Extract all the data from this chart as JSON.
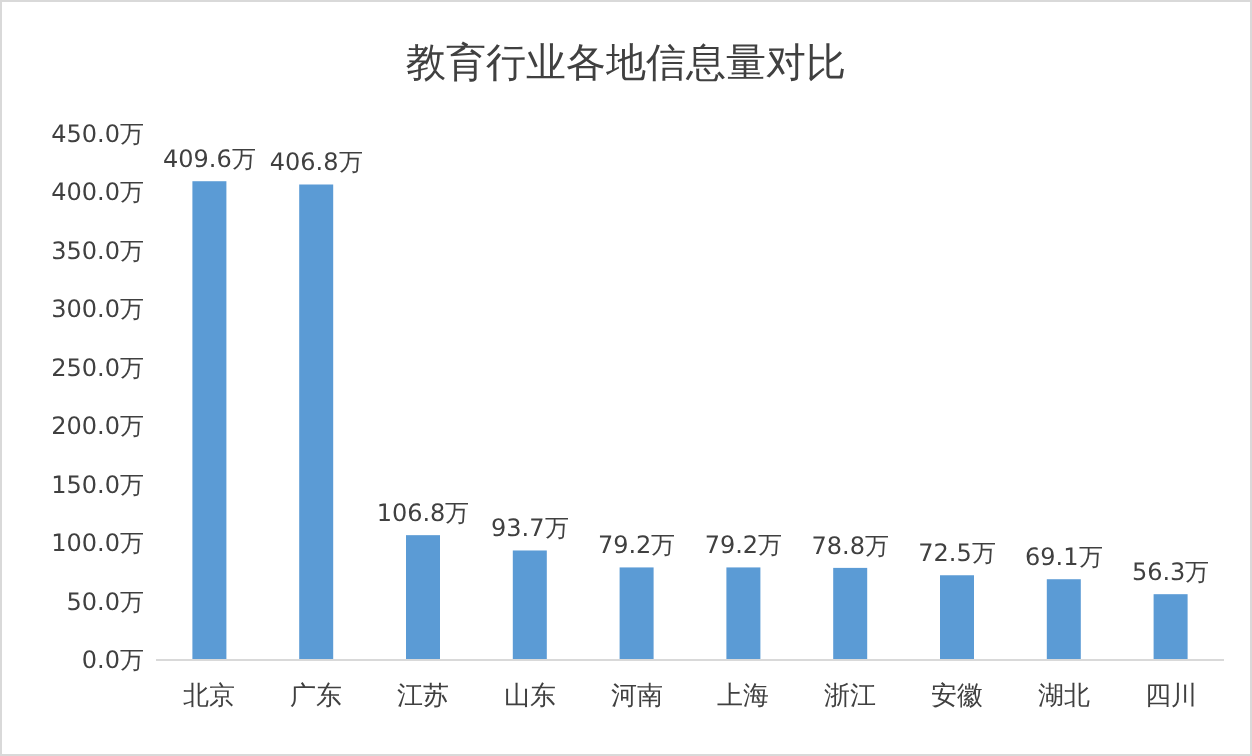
{
  "chart_data": {
    "type": "bar",
    "title": "教育行业各地信息量对比",
    "categories": [
      "北京",
      "广东",
      "江苏",
      "山东",
      "河南",
      "上海",
      "浙江",
      "安徽",
      "湖北",
      "四川"
    ],
    "values": [
      409.6,
      406.8,
      106.8,
      93.7,
      79.2,
      79.2,
      78.8,
      72.5,
      69.1,
      56.3
    ],
    "value_labels": [
      "409.6万",
      "406.8万",
      "106.8万",
      "93.7万",
      "79.2万",
      "79.2万",
      "78.8万",
      "72.5万",
      "69.1万",
      "56.3万"
    ],
    "color": "#5b9bd5",
    "ylim": [
      0,
      450
    ],
    "yticks": [
      {
        "value": 0,
        "label": "0.0万"
      },
      {
        "value": 50,
        "label": "50.0万"
      },
      {
        "value": 100,
        "label": "100.0万"
      },
      {
        "value": 150,
        "label": "150.0万"
      },
      {
        "value": 200,
        "label": "200.0万"
      },
      {
        "value": 250,
        "label": "250.0万"
      },
      {
        "value": 300,
        "label": "300.0万"
      },
      {
        "value": 350,
        "label": "350.0万"
      },
      {
        "value": 400,
        "label": "400.0万"
      },
      {
        "value": 450,
        "label": "450.0万"
      }
    ],
    "grid": false
  }
}
